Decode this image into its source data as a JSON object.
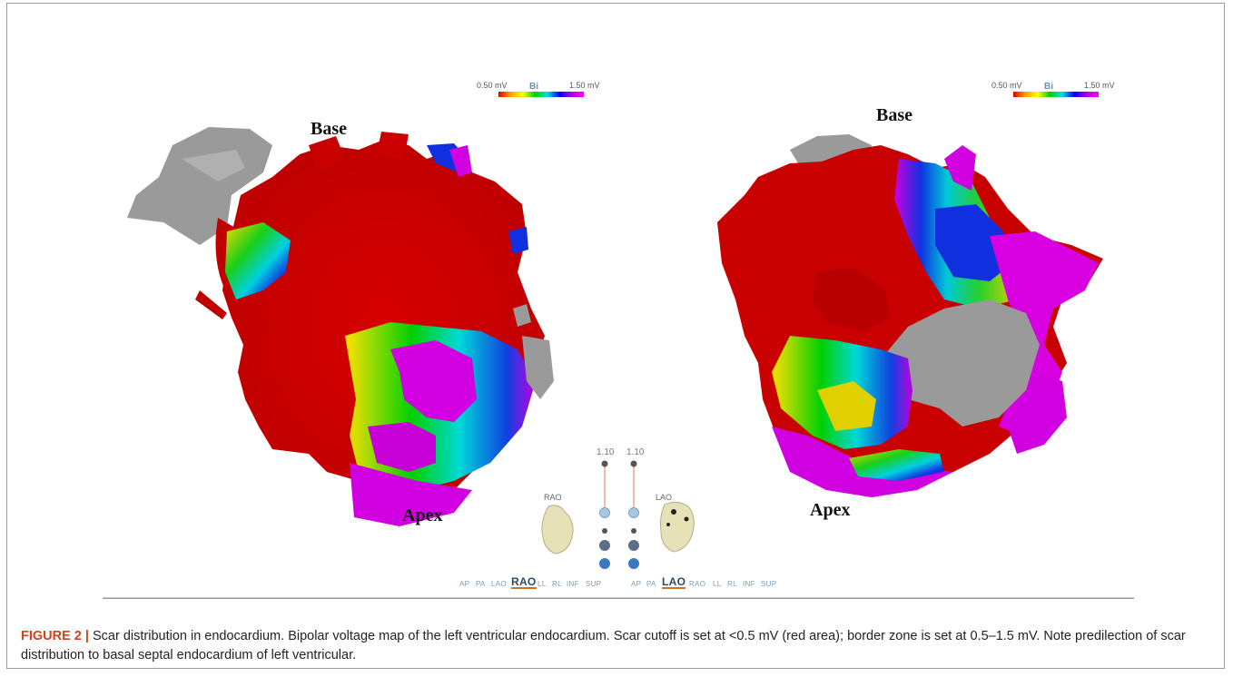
{
  "figure": {
    "label": "FIGURE 2 |",
    "caption": " Scar distribution in endocardium. Bipolar voltage map of the left ventricular endocardium. Scar cutoff is set at <0.5 mV (red area); border zone is set at 0.5–1.5 mV. Note predilection of scar distribution to basal septal endocardium of left ventricular."
  },
  "left_map": {
    "base_label": "Base",
    "apex_label": "Apex",
    "legend": {
      "low": "0.50 mV",
      "mode": "Bi",
      "high": "1.50 mV"
    }
  },
  "right_map": {
    "base_label": "Base",
    "apex_label": "Apex",
    "legend": {
      "low": "0.50 mV",
      "mode": "Bi",
      "high": "1.50 mV"
    }
  },
  "controls": {
    "left_zoom": "1.10",
    "right_zoom": "1.10",
    "left_orientation": "RAO",
    "right_orientation": "LAO",
    "left_views": [
      "AP",
      "PA",
      "LAO",
      "RAO",
      "LL",
      "RL",
      "INF",
      "SUP"
    ],
    "left_active_view": "RAO",
    "right_views": [
      "AP",
      "PA",
      "LAO",
      "RAO",
      "LL",
      "RL",
      "INF",
      "SUP"
    ],
    "right_active_view": "LAO"
  },
  "colors": {
    "scar": "#d40000",
    "healthy": "#e000e0",
    "border_zone": "#00c8d8",
    "anatomy": "#9c9c9c",
    "figure_label": "#d0431c"
  }
}
